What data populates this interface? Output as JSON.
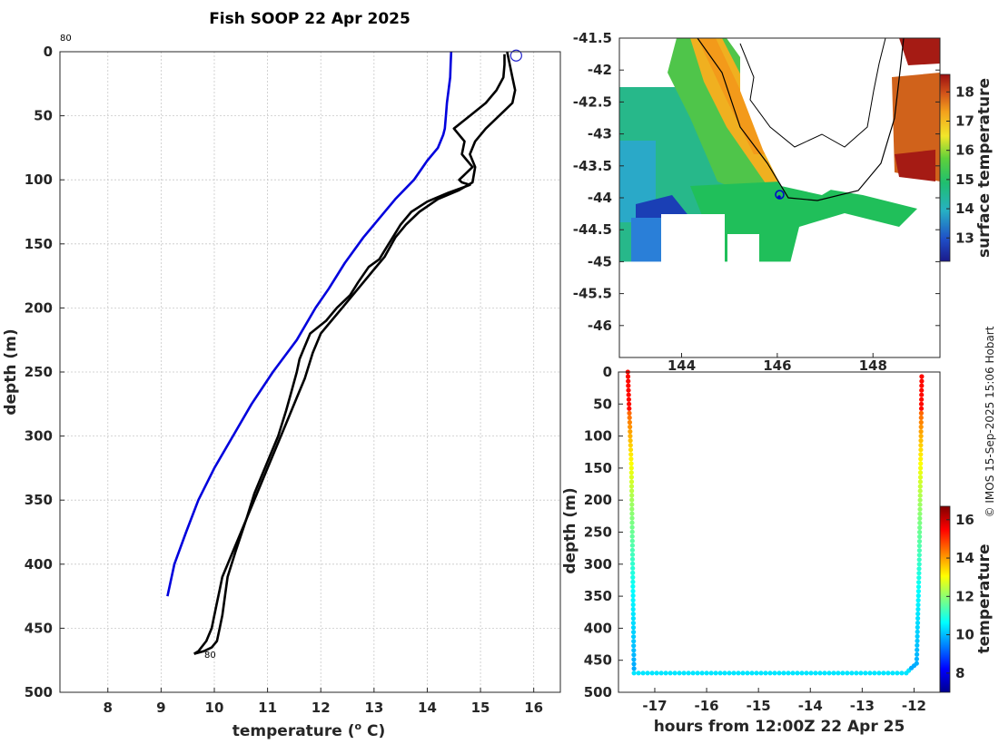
{
  "credit": "© IMOS 15-Sep-2025 15:06 Hobart",
  "colors": {
    "background": "#ffffff",
    "axis": "#262626",
    "profile_primary": "#000000",
    "climatology": "#0000dd",
    "land_coast": "#000000",
    "shelf_contour": "#000000"
  },
  "chart_data": [
    {
      "id": "profile",
      "type": "line",
      "title": "Fish SOOP 22 Apr 2025",
      "xlabel": "temperature (",
      "xlabel_sup": "o",
      "xlabel_end": " C)",
      "ylabel": "depth (m)",
      "xlim": [
        7.1,
        16.5
      ],
      "ylim": [
        0,
        500
      ],
      "y_reversed": true,
      "xticks": [
        8,
        9,
        10,
        11,
        12,
        13,
        14,
        15,
        16
      ],
      "yticks": [
        0,
        50,
        100,
        150,
        200,
        250,
        300,
        350,
        400,
        450,
        500
      ],
      "grid": true,
      "start_marker": {
        "x": 15.67,
        "y": 3
      },
      "annotations": [
        {
          "text": "80",
          "x": 7.1,
          "y": -10
        },
        {
          "text": "80",
          "x": 9.8,
          "y": 470
        }
      ],
      "series": [
        {
          "name": "climatology",
          "color": "#0000dd",
          "x": [
            14.45,
            14.44,
            14.43,
            14.4,
            14.37,
            14.35,
            14.33,
            14.3,
            14.2,
            14.0,
            13.75,
            13.4,
            13.1,
            12.8,
            12.45,
            12.15,
            11.9,
            11.55,
            11.1,
            10.7,
            10.35,
            10.0,
            9.7,
            9.47,
            9.25,
            9.12
          ],
          "y": [
            0,
            10,
            20,
            30,
            40,
            50,
            60,
            65,
            75,
            85,
            100,
            115,
            130,
            145,
            165,
            185,
            200,
            225,
            250,
            275,
            300,
            325,
            350,
            375,
            400,
            425
          ]
        },
        {
          "name": "profile-a",
          "color": "#000000",
          "x": [
            15.45,
            15.45,
            15.43,
            15.3,
            15.1,
            14.8,
            14.5,
            14.7,
            14.65,
            14.85,
            14.6,
            14.65,
            14.8,
            14.4,
            14.0,
            13.7,
            13.5,
            13.35,
            13.2,
            13.1,
            12.9,
            12.7,
            12.55,
            12.3,
            12.1,
            11.8,
            11.7,
            11.6,
            11.55,
            11.45,
            11.35,
            11.2,
            11.05,
            10.9,
            10.75,
            10.6,
            10.45,
            10.3,
            10.15,
            10.1,
            10.05,
            10.0,
            9.95,
            9.85,
            9.7,
            9.62
          ],
          "y": [
            2,
            10,
            20,
            30,
            40,
            50,
            60,
            70,
            80,
            90,
            100,
            102,
            104,
            110,
            117,
            125,
            135,
            145,
            155,
            162,
            168,
            180,
            190,
            200,
            210,
            220,
            230,
            240,
            250,
            265,
            280,
            300,
            315,
            330,
            345,
            365,
            380,
            395,
            410,
            420,
            430,
            440,
            450,
            460,
            468,
            470
          ]
        },
        {
          "name": "profile-b",
          "color": "#000000",
          "x": [
            15.5,
            15.55,
            15.6,
            15.65,
            15.6,
            15.35,
            15.1,
            14.9,
            14.8,
            14.9,
            14.85,
            14.6,
            14.2,
            13.85,
            13.6,
            13.4,
            13.2,
            13.0,
            12.8,
            12.6,
            12.4,
            12.2,
            12.0,
            11.85,
            11.7,
            11.55,
            11.4,
            11.25,
            11.0,
            10.8,
            10.6,
            10.4,
            10.25,
            10.2,
            10.15,
            10.1,
            10.05,
            9.95,
            9.8,
            9.62
          ],
          "y": [
            0,
            10,
            20,
            30,
            40,
            50,
            60,
            70,
            80,
            90,
            102,
            108,
            115,
            125,
            135,
            145,
            160,
            170,
            180,
            190,
            200,
            210,
            220,
            235,
            255,
            270,
            285,
            300,
            325,
            345,
            365,
            390,
            410,
            425,
            440,
            450,
            460,
            465,
            468,
            470
          ]
        }
      ]
    },
    {
      "id": "map",
      "type": "heatmap",
      "xticks": [
        "144",
        "146",
        "148"
      ],
      "yticks": [
        "-41.5",
        "-42",
        "-42.5",
        "-43",
        "-43.5",
        "-44",
        "-44.5",
        "-45",
        "-45.5",
        "-46"
      ],
      "lon_range": [
        142.7,
        149.4
      ],
      "lat_range": [
        -46.5,
        -41.5
      ],
      "data_lat_bottom": -45.0,
      "colorbar": {
        "label": "surface temperature",
        "ticks": [
          "13",
          "14",
          "15",
          "16",
          "17",
          "18"
        ],
        "range": [
          12.2,
          18.6
        ]
      },
      "marker": {
        "lon": 146.05,
        "lat": -43.95
      }
    },
    {
      "id": "section",
      "type": "scatter",
      "xlabel": "hours from 12:00Z 22 Apr 25",
      "ylabel": "depth (m)",
      "xlim": [
        -17.7,
        -11.5
      ],
      "ylim": [
        0,
        500
      ],
      "y_reversed": true,
      "xticks": [
        -17,
        -16,
        -15,
        -14,
        -13,
        -12
      ],
      "yticks": [
        0,
        50,
        100,
        150,
        200,
        250,
        300,
        350,
        400,
        450,
        500
      ],
      "path_x": [
        -17.52,
        -17.45,
        -17.4,
        -12.15,
        -12.05,
        -11.95,
        -11.9,
        -11.85
      ],
      "path_y": [
        0,
        150,
        470,
        470,
        462,
        455,
        300,
        0
      ],
      "colorbar": {
        "label": "temperature",
        "ticks": [
          "8",
          "10",
          "12",
          "14",
          "16"
        ],
        "range": [
          7.0,
          16.7
        ]
      }
    }
  ]
}
